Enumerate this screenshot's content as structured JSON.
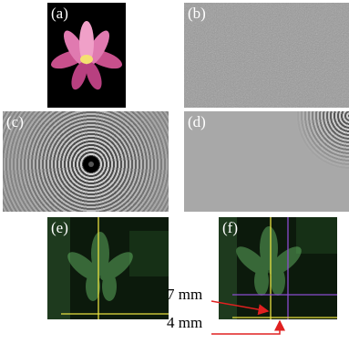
{
  "panels": [
    {
      "label": "(a)"
    },
    {
      "label": "(b)"
    },
    {
      "label": "(c)"
    },
    {
      "label": "(d)"
    },
    {
      "label": "(e)"
    },
    {
      "label": "(f)"
    }
  ],
  "annotations": [
    {
      "label": "7 mm"
    },
    {
      "label": "4 mm"
    }
  ]
}
